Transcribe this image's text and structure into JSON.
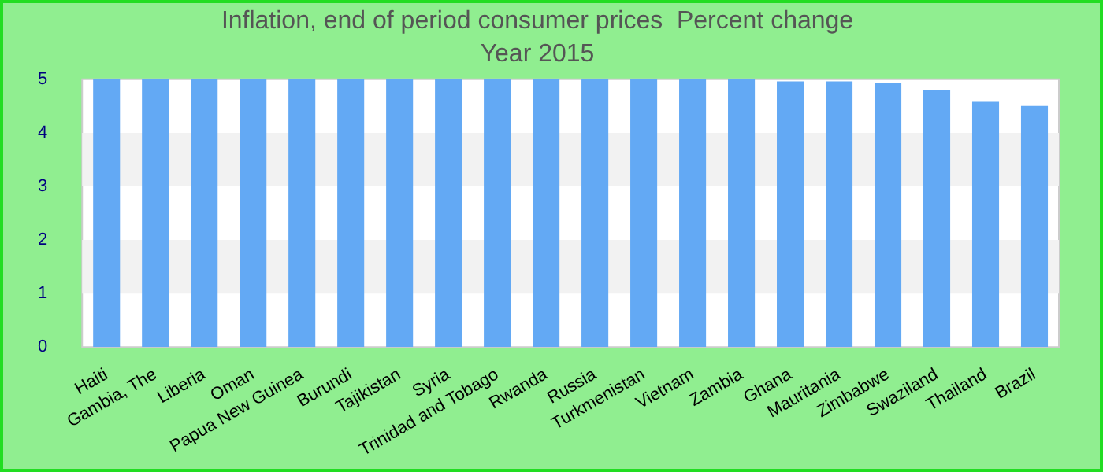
{
  "chart_data": {
    "type": "bar",
    "title": "Inflation, end of period consumer prices  Percent change",
    "subtitle": "Year 2015",
    "categories": [
      "Haiti",
      "Gambia, The",
      "Liberia",
      "Oman",
      "Papua New Guinea",
      "Burundi",
      "Tajikistan",
      "Syria",
      "Trinidad and Tobago",
      "Rwanda",
      "Russia",
      "Turkmenistan",
      "Vietnam",
      "Zambia",
      "Ghana",
      "Mauritania",
      "Zimbabwe",
      "Swaziland",
      "Thailand",
      "Brazil"
    ],
    "values": [
      5,
      5,
      5,
      5,
      5,
      5,
      5,
      5,
      5,
      5,
      5,
      5,
      5,
      5,
      4.96,
      4.96,
      4.93,
      4.8,
      4.58,
      4.5
    ],
    "color": "#63a9f4",
    "ylim": [
      0,
      5
    ],
    "yticks": [
      0,
      1,
      2,
      3,
      4,
      5
    ],
    "legend": false
  }
}
